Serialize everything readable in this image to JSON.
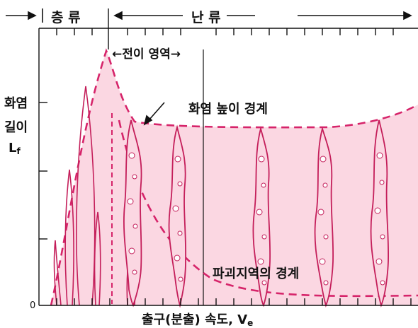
{
  "header": {
    "laminar": "층  류",
    "turbulent": "난        류"
  },
  "labels": {
    "transition_region": "←전이 영역→",
    "flame_height_boundary": "화염 높이 경계",
    "breakup_boundary": "파괴지역의 경계",
    "y_axis_line1": "화염",
    "y_axis_line2": "길이",
    "y_axis_symbol": "L",
    "y_axis_subscript": "f",
    "x_axis": "출구(분출) 속도, V",
    "x_axis_subscript": "e",
    "origin": "0"
  },
  "colors": {
    "flame_fill": "#fbd7e2",
    "dashed_line": "#d6246a",
    "flame_outline": "#c41e5a",
    "axis": "#111111"
  }
}
